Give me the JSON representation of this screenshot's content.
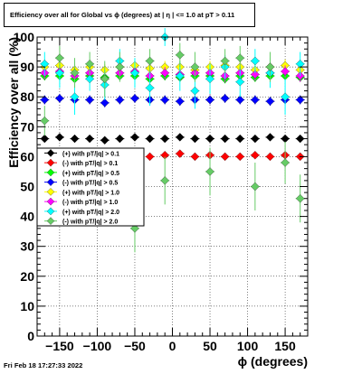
{
  "title": "Efficiency over all for Global vs ϕ (degrees) at |  η | <= 1.0 at pT > 0.11",
  "footer": "Fri Feb 18 17:27:33 2022",
  "chart_data": {
    "type": "scatter",
    "title": "Efficiency over all for Global vs ϕ (degrees) at |  η | <= 1.0 at pT > 0.11",
    "xlabel": "ϕ (degrees)",
    "ylabel": "Efficiency over all (%)",
    "xlim": [
      -180,
      180
    ],
    "ylim": [
      0,
      100
    ],
    "x_ticks": [
      -150,
      -100,
      -50,
      0,
      50,
      100,
      150
    ],
    "x_tick_labels": [
      "−150",
      "−100",
      "−50",
      "0",
      "50",
      "100",
      "150"
    ],
    "y_ticks": [
      0,
      10,
      20,
      30,
      40,
      50,
      60,
      70,
      80,
      90,
      100
    ],
    "y_tick_labels": [
      "0",
      "10",
      "20",
      "30",
      "40",
      "50",
      "60",
      "70",
      "80",
      "90",
      "100"
    ],
    "grid": true,
    "legend_position": "left-middle",
    "series": [
      {
        "name": "(+) with pT/|q| > 0.1",
        "color": "#000000",
        "x": [
          -170,
          -150,
          -130,
          -110,
          -90,
          -70,
          -50,
          -30,
          -10,
          10,
          30,
          50,
          70,
          90,
          110,
          130,
          150,
          170
        ],
        "y": [
          66,
          66.5,
          66,
          66,
          65.5,
          66,
          66.5,
          66,
          66,
          66.5,
          66,
          66,
          66,
          66,
          66,
          66.5,
          66,
          66
        ],
        "err": [
          1,
          1,
          1,
          1,
          1,
          1,
          1,
          1,
          1,
          1,
          1,
          1,
          1,
          1,
          1,
          1,
          1,
          1
        ]
      },
      {
        "name": "(-) with pT/|q| > 0.1",
        "color": "#ff0000",
        "x": [
          -170,
          -150,
          -130,
          -110,
          -90,
          -70,
          -50,
          -30,
          -10,
          10,
          30,
          50,
          70,
          90,
          110,
          130,
          150,
          170
        ],
        "y": [
          60,
          60.5,
          61,
          60,
          60.5,
          60,
          60.5,
          60,
          60.5,
          61,
          60,
          60.5,
          60,
          60,
          60.5,
          60,
          60.5,
          60
        ],
        "err": [
          1,
          1,
          1,
          1,
          1,
          1,
          1,
          1,
          1,
          1,
          1,
          1,
          1,
          1,
          1,
          1,
          1,
          1
        ]
      },
      {
        "name": "(+) with pT/|q| > 0.5",
        "color": "#00ff00",
        "x": [
          -170,
          -150,
          -130,
          -110,
          -90,
          -70,
          -50,
          -30,
          -10,
          10,
          30,
          50,
          70,
          90,
          110,
          130,
          150,
          170
        ],
        "y": [
          87,
          87,
          86,
          87,
          86.5,
          87,
          87,
          86,
          87,
          86.5,
          87,
          87,
          86,
          87,
          86.5,
          87,
          87,
          86.5
        ],
        "err": [
          1.5,
          1.5,
          1.5,
          1.5,
          1.5,
          1.5,
          1.5,
          1.5,
          1.5,
          1.5,
          1.5,
          1.5,
          1.5,
          1.5,
          1.5,
          1.5,
          1.5,
          1.5
        ]
      },
      {
        "name": "(-) with pT/|q| > 0.5",
        "color": "#0000ff",
        "x": [
          -170,
          -150,
          -130,
          -110,
          -90,
          -70,
          -50,
          -30,
          -10,
          10,
          30,
          50,
          70,
          90,
          110,
          130,
          150,
          170
        ],
        "y": [
          79,
          79.5,
          79,
          79,
          78,
          79,
          79.5,
          79,
          79,
          78.5,
          79,
          79,
          79.5,
          79,
          79,
          78.5,
          79,
          79
        ],
        "err": [
          1.5,
          1.5,
          1.5,
          1.5,
          1.5,
          1.5,
          1.5,
          1.5,
          1.5,
          1.5,
          1.5,
          1.5,
          1.5,
          1.5,
          1.5,
          1.5,
          1.5,
          1.5
        ]
      },
      {
        "name": "(+) with pT/|q| > 1.0",
        "color": "#ffff00",
        "x": [
          -170,
          -150,
          -130,
          -110,
          -90,
          -70,
          -50,
          -30,
          -10,
          10,
          30,
          50,
          70,
          90,
          110,
          130,
          150,
          170
        ],
        "y": [
          90,
          90.5,
          89,
          90,
          89,
          90,
          90.5,
          89.5,
          90,
          90,
          89,
          90,
          90.5,
          90,
          89,
          90,
          90.5,
          89
        ],
        "err": [
          2,
          2,
          2,
          2,
          2,
          2,
          2,
          2,
          2,
          2,
          2,
          2,
          2,
          2,
          2,
          2,
          2,
          2
        ]
      },
      {
        "name": "(-) with pT/|q| > 1.0",
        "color": "#ff00ff",
        "x": [
          -170,
          -150,
          -130,
          -110,
          -90,
          -70,
          -50,
          -30,
          -10,
          10,
          30,
          50,
          70,
          90,
          110,
          130,
          150,
          170
        ],
        "y": [
          88,
          88.5,
          87,
          88,
          86,
          88,
          88.5,
          87,
          88,
          87.5,
          88,
          88,
          87,
          88,
          87.5,
          88,
          88.5,
          87
        ],
        "err": [
          2,
          2,
          2,
          2,
          2,
          2,
          2,
          2,
          2,
          2,
          2,
          2,
          2,
          2,
          2,
          2,
          2,
          2
        ]
      },
      {
        "name": "(+) with pT/|q| > 2.0",
        "color": "#00ffff",
        "x": [
          -170,
          -150,
          -130,
          -110,
          -90,
          -70,
          -50,
          -30,
          -10,
          10,
          30,
          50,
          70,
          90,
          110,
          130,
          150,
          170
        ],
        "y": [
          91,
          88,
          80,
          86,
          84,
          92,
          88,
          83,
          100,
          87,
          82,
          86,
          90,
          85,
          92,
          88,
          80,
          91
        ],
        "err": [
          4,
          5,
          6,
          4,
          5,
          4,
          5,
          6,
          3,
          5,
          6,
          5,
          4,
          5,
          4,
          5,
          6,
          4
        ]
      },
      {
        "name": "(-) with pT/|q| > 2.0",
        "color": "#66cc66",
        "x": [
          -170,
          -150,
          -130,
          -110,
          -90,
          -70,
          -50,
          -30,
          -10,
          10,
          30,
          50,
          70,
          90,
          110,
          130,
          150,
          170
        ],
        "y": [
          72,
          93,
          88,
          91,
          86,
          90,
          36,
          92,
          52,
          94,
          90,
          55,
          92,
          93,
          50,
          90,
          58,
          46
        ],
        "err": [
          5,
          4,
          5,
          4,
          6,
          5,
          8,
          4,
          8,
          4,
          5,
          8,
          4,
          4,
          8,
          5,
          7,
          8
        ]
      }
    ]
  }
}
